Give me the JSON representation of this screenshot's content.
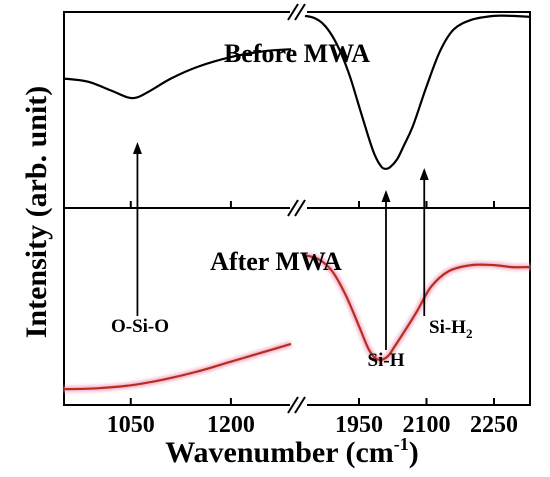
{
  "chart_data": {
    "type": "line",
    "xlabel": "Wavenumber (cm",
    "xlabel_sup": "-1",
    "xlabel_close": ")",
    "ylabel": "Intensity (arb. unit)",
    "x_segments": [
      {
        "range": [
          950,
          1290
        ],
        "ticks": [
          1050,
          1200
        ]
      },
      {
        "range": [
          1830,
          2330
        ],
        "ticks": [
          1950,
          2100,
          2250
        ]
      }
    ],
    "tick_labels": [
      "1050",
      "1200",
      "1950",
      "2100",
      "2250"
    ],
    "colors": {
      "before": "#000000",
      "after": "#b5301c",
      "after_glow": "#f4a9c8"
    },
    "panels": [
      {
        "title": "Before MWA",
        "series": [
          {
            "segment": 0,
            "x": [
              950,
              985,
              1020,
              1045,
              1060,
              1080,
              1110,
              1150,
              1200,
              1250,
              1290
            ],
            "y": [
              0.66,
              0.645,
              0.6,
              0.565,
              0.565,
              0.6,
              0.66,
              0.72,
              0.77,
              0.8,
              0.81
            ]
          },
          {
            "segment": 1,
            "x": [
              1830,
              1850,
              1870,
              1890,
              1910,
              1930,
              1950,
              1970,
              1985,
              2000,
              2010,
              2020,
              2035,
              2050,
              2070,
              2100,
              2130,
              2160,
              2200,
              2250,
              2290,
              2330
            ],
            "y": [
              0.98,
              0.97,
              0.94,
              0.88,
              0.79,
              0.67,
              0.52,
              0.37,
              0.27,
              0.21,
              0.2,
              0.21,
              0.25,
              0.32,
              0.42,
              0.62,
              0.8,
              0.91,
              0.96,
              0.98,
              0.98,
              0.975
            ]
          }
        ]
      },
      {
        "title": "After MWA",
        "series": [
          {
            "segment": 0,
            "x": [
              950,
              1000,
              1050,
              1100,
              1150,
              1200,
              1250,
              1290
            ],
            "y": [
              0.08,
              0.085,
              0.1,
              0.13,
              0.17,
              0.22,
              0.27,
              0.31
            ]
          },
          {
            "segment": 1,
            "x": [
              1830,
              1860,
              1890,
              1920,
              1950,
              1970,
              1985,
              2000,
              2015,
              2030,
              2050,
              2080,
              2110,
              2150,
              2200,
              2250,
              2290,
              2330
            ],
            "y": [
              0.76,
              0.74,
              0.68,
              0.56,
              0.4,
              0.29,
              0.24,
              0.23,
              0.25,
              0.3,
              0.37,
              0.48,
              0.6,
              0.68,
              0.71,
              0.71,
              0.7,
              0.7
            ]
          }
        ]
      }
    ],
    "annotations": [
      {
        "label": "O-Si-O",
        "x": 1060,
        "segment": 0
      },
      {
        "label": "Si-H",
        "x": 2010,
        "segment": 1
      },
      {
        "label": "Si-H",
        "sub": "2",
        "x": 2095,
        "segment": 1
      }
    ]
  }
}
